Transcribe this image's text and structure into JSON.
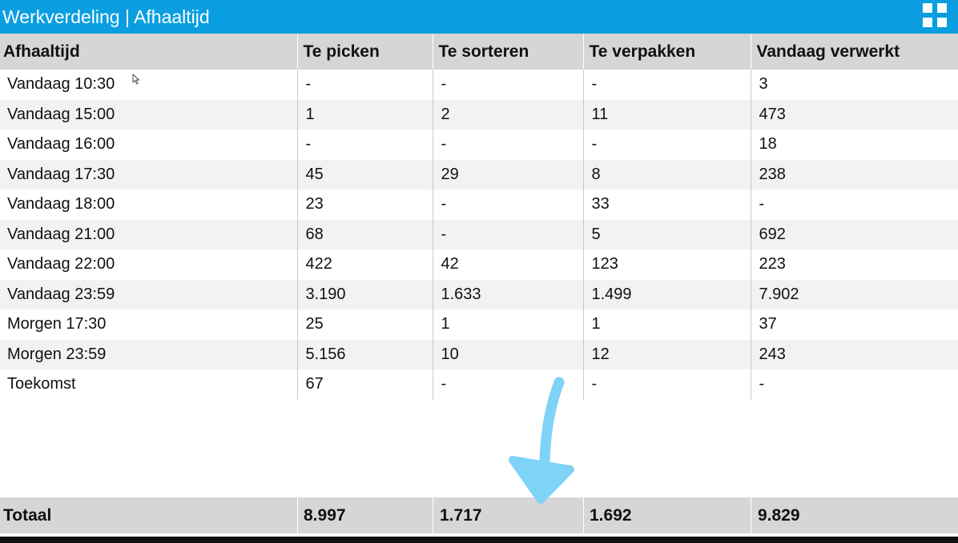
{
  "header": {
    "title": "Werkverdeling | Afhaaltijd",
    "menu_icon": "grid-icon"
  },
  "colors": {
    "header_bg": "#0a9ee0",
    "table_header_bg": "#d6d6d6",
    "row_alt_bg": "#f2f2f2",
    "annotation_arrow": "#7fd3f7"
  },
  "table": {
    "columns": [
      "Afhaaltijd",
      "Te picken",
      "Te sorteren",
      "Te verpakken",
      "Vandaag verwerkt"
    ],
    "rows": [
      [
        "Vandaag 10:30",
        "-",
        "-",
        "-",
        "3"
      ],
      [
        "Vandaag 15:00",
        "1",
        "2",
        "11",
        "473"
      ],
      [
        "Vandaag 16:00",
        "-",
        "-",
        "-",
        "18"
      ],
      [
        "Vandaag 17:30",
        "45",
        "29",
        "8",
        "238"
      ],
      [
        "Vandaag 18:00",
        "23",
        "-",
        "33",
        "-"
      ],
      [
        "Vandaag 21:00",
        "68",
        "-",
        "5",
        "692"
      ],
      [
        "Vandaag 22:00",
        "422",
        "42",
        "123",
        "223"
      ],
      [
        "Vandaag 23:59",
        "3.190",
        "1.633",
        "1.499",
        "7.902"
      ],
      [
        "Morgen 17:30",
        "25",
        "1",
        "1",
        "37"
      ],
      [
        "Morgen 23:59",
        "5.156",
        "10",
        "12",
        "243"
      ],
      [
        "Toekomst",
        "67",
        "-",
        "-",
        "-"
      ]
    ],
    "totals": [
      "Totaal",
      "8.997",
      "1.717",
      "1.692",
      "9.829"
    ]
  }
}
